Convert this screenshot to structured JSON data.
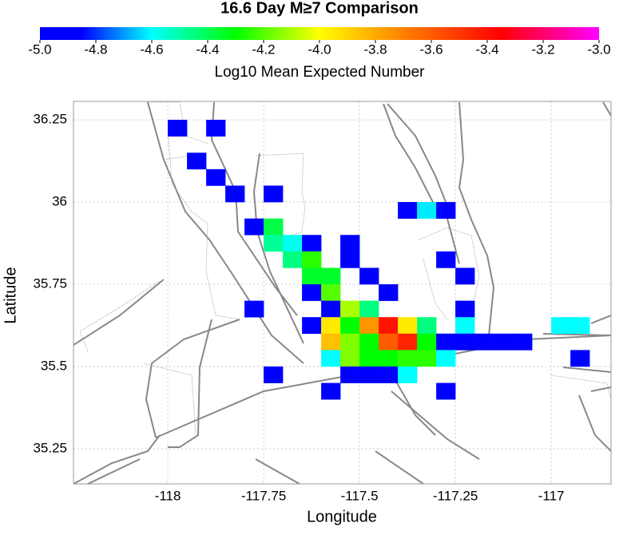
{
  "chart_data": {
    "type": "heatmap",
    "title": "16.6 Day M≥7 Comparison",
    "colorbar_label": "Log10 Mean Expected Number",
    "xlabel": "Longitude",
    "ylabel": "Latitude",
    "clim": [
      -5,
      -3
    ],
    "cticks": [
      {
        "value": -5,
        "label": "-5.0"
      },
      -4.8,
      -4.6,
      -4.4,
      -4.2,
      {
        "value": -4,
        "label": "-4.0"
      },
      -3.8,
      -3.6,
      -3.4,
      -3.2,
      {
        "value": -3,
        "label": "-3.0"
      }
    ],
    "colormap": [
      {
        "value": -5,
        "color": "#0000ff"
      },
      {
        "value": -4.85,
        "color": "#0000ff"
      },
      {
        "value": -4.6,
        "color": "#00ffff"
      },
      {
        "value": -4.3,
        "color": "#00ff00"
      },
      {
        "value": -4,
        "color": "#ffff00"
      },
      {
        "value": -3.7,
        "color": "#ff8000"
      },
      {
        "value": -3.35,
        "color": "#ff0000"
      },
      {
        "value": -3,
        "color": "#ff00ff"
      }
    ],
    "xlim": [
      -118.246,
      -116.844
    ],
    "ylim": [
      35.143,
      36.306
    ],
    "xticks": [
      -118,
      -117.75,
      -117.5,
      -117.25,
      -117
    ],
    "yticks": [
      35.25,
      35.5,
      35.75,
      36,
      36.25
    ],
    "grid": true,
    "x": [
      -117.975,
      -117.875,
      -117.925,
      -117.875,
      -117.825,
      -117.725,
      -117.375,
      -117.325,
      -117.275,
      -117.775,
      -117.725,
      -117.725,
      -117.675,
      -117.625,
      -117.525,
      -117.675,
      -117.625,
      -117.525,
      -117.275,
      -117.625,
      -117.575,
      -117.475,
      -117.225,
      -117.625,
      -117.575,
      -117.425,
      -117.775,
      -117.575,
      -117.525,
      -117.475,
      -117.225,
      -117.625,
      -117.575,
      -117.525,
      -117.475,
      -117.425,
      -117.375,
      -117.325,
      -117.225,
      -116.975,
      -116.925,
      -117.575,
      -117.525,
      -117.475,
      -117.425,
      -117.375,
      -117.325,
      -117.275,
      -117.225,
      -117.175,
      -117.125,
      -117.075,
      -117.575,
      -117.525,
      -117.475,
      -117.425,
      -117.375,
      -117.325,
      -117.275,
      -116.925,
      -117.725,
      -117.525,
      -117.475,
      -117.425,
      -117.375,
      -117.575,
      -117.275
    ],
    "y": [
      36.225,
      36.225,
      36.125,
      36.075,
      36.025,
      36.025,
      35.975,
      35.975,
      35.975,
      35.925,
      35.925,
      35.875,
      35.875,
      35.875,
      35.875,
      35.825,
      35.825,
      35.825,
      35.825,
      35.775,
      35.775,
      35.775,
      35.775,
      35.725,
      35.725,
      35.725,
      35.675,
      35.675,
      35.675,
      35.675,
      35.675,
      35.625,
      35.625,
      35.625,
      35.625,
      35.625,
      35.625,
      35.625,
      35.625,
      35.625,
      35.625,
      35.575,
      35.575,
      35.575,
      35.575,
      35.575,
      35.575,
      35.575,
      35.575,
      35.575,
      35.575,
      35.575,
      35.525,
      35.525,
      35.525,
      35.525,
      35.525,
      35.525,
      35.525,
      35.525,
      35.475,
      35.475,
      35.475,
      35.475,
      35.475,
      35.425,
      35.425
    ],
    "values": [
      -5,
      -5,
      -5,
      -5,
      -5,
      -5,
      -5,
      -4.62,
      -5,
      -5,
      -4.38,
      -4.48,
      -4.58,
      -5,
      -5,
      -4.45,
      -4.25,
      -5,
      -5,
      -4.35,
      -4.35,
      -5,
      -5,
      -5,
      -4.2,
      -5,
      -5,
      -5,
      -4.1,
      -4.45,
      -5,
      -5,
      -3.95,
      -4.3,
      -3.75,
      -3.4,
      -3.95,
      -4.45,
      -4.6,
      -4.6,
      -4.6,
      -3.85,
      -4.15,
      -4.3,
      -3.6,
      -3.45,
      -4.3,
      -5,
      -5,
      -5,
      -5,
      -5,
      -4.6,
      -4.15,
      -4.3,
      -4.3,
      -4.25,
      -4.25,
      -4.6,
      -5,
      -5,
      -5,
      -5,
      -5,
      -4.6,
      -5,
      -5
    ]
  }
}
